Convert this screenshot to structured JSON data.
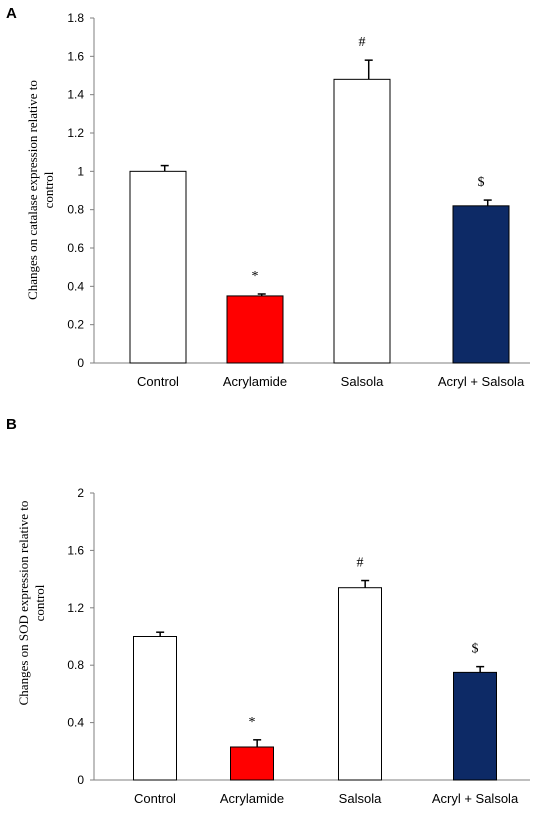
{
  "chart_data": [
    {
      "panel": "A",
      "type": "bar",
      "ylabel_lines": [
        "Changes on catalase expression relative to",
        "control"
      ],
      "categories": [
        "Control",
        "Acrylamide",
        "Salsola",
        "Acryl + Salsola"
      ],
      "values": [
        1.0,
        0.35,
        1.48,
        0.82
      ],
      "errors": [
        0.03,
        0.01,
        0.1,
        0.03
      ],
      "annotations": [
        "",
        "*",
        "#",
        "$"
      ],
      "colors": [
        "#ffffff",
        "#ff0000",
        "#ffffff",
        "#0d2a66"
      ],
      "ylim": [
        0,
        1.8
      ],
      "yticks": [
        0,
        0.2,
        0.4,
        0.6,
        0.8,
        1,
        1.2,
        1.4,
        1.6,
        1.8
      ],
      "ytick_labels": [
        "0",
        "0.2",
        "0.4",
        "0.6",
        "0.8",
        "1",
        "1.2",
        "1.4",
        "1.6",
        "1.8"
      ]
    },
    {
      "panel": "B",
      "type": "bar",
      "ylabel_lines": [
        "Changes on SOD expression relative to",
        "control"
      ],
      "categories": [
        "Control",
        "Acrylamide",
        "Salsola",
        "Acryl + Salsola"
      ],
      "values": [
        1.0,
        0.23,
        1.34,
        0.75
      ],
      "errors": [
        0.03,
        0.05,
        0.05,
        0.04
      ],
      "annotations": [
        "",
        "*",
        "#",
        "$"
      ],
      "colors": [
        "#ffffff",
        "#ff0000",
        "#ffffff",
        "#0d2a66"
      ],
      "ylim": [
        0,
        2
      ],
      "yticks": [
        0,
        0.4,
        0.8,
        1.2,
        1.6,
        2
      ],
      "ytick_labels": [
        "0",
        "0.4",
        "0.8",
        "1.2",
        "1.6",
        "2"
      ]
    }
  ]
}
